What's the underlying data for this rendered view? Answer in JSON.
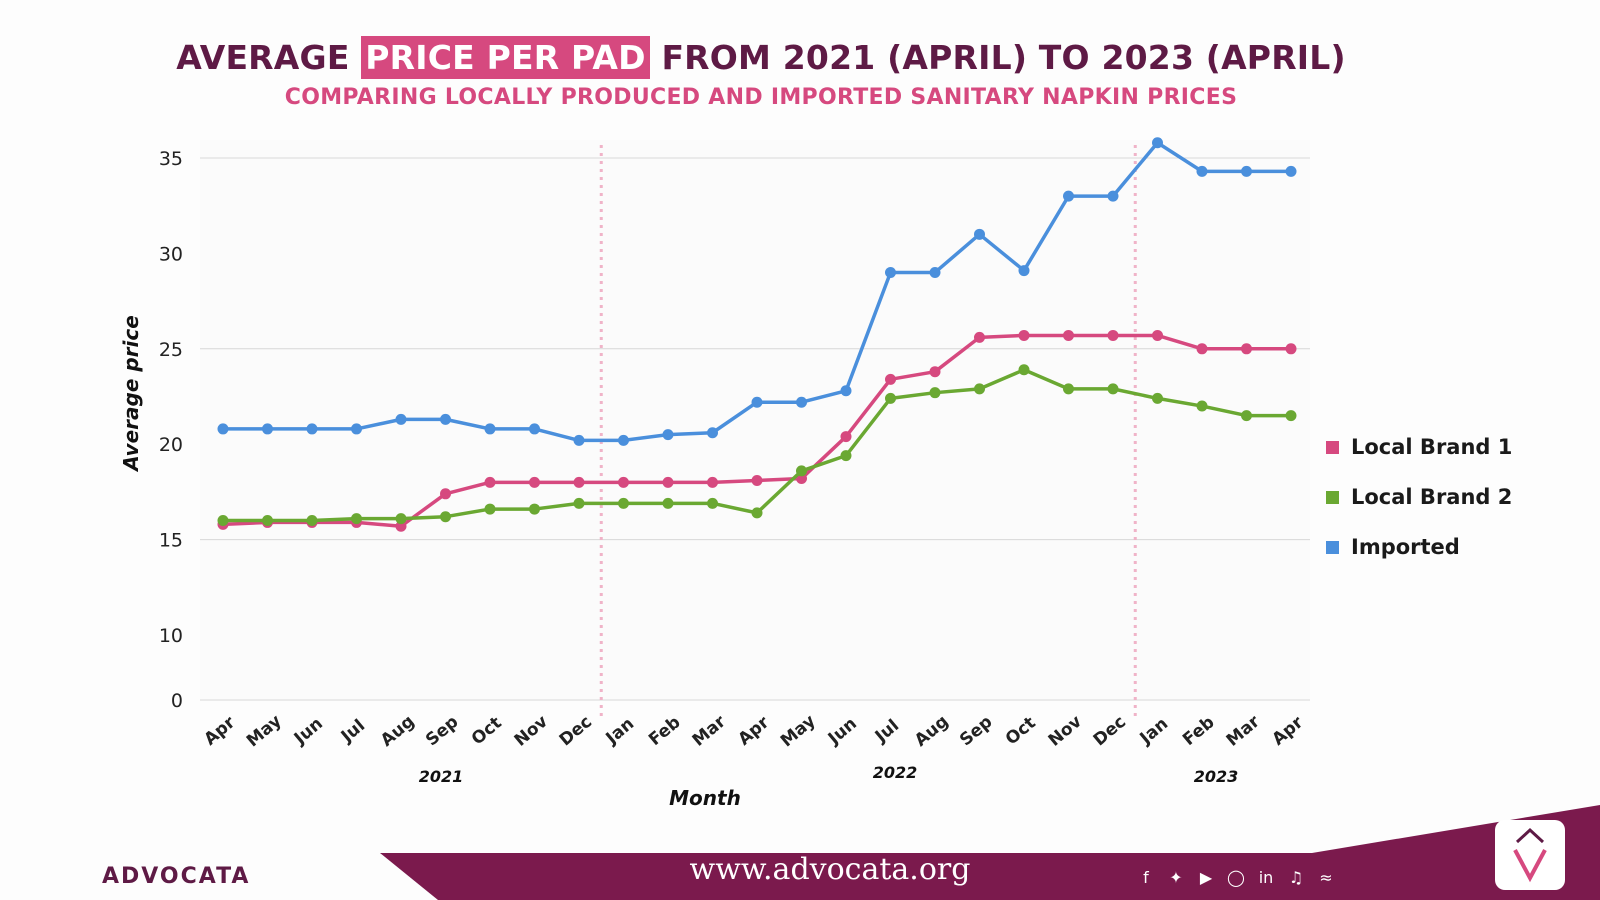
{
  "header": {
    "title_pre": "AVERAGE",
    "title_highlight": "PRICE PER PAD",
    "title_post": "FROM 2021 (APRIL) TO 2023 (APRIL)",
    "subtitle": "COMPARING LOCALLY PRODUCED AND IMPORTED SANITARY NAPKIN PRICES"
  },
  "chart_data": {
    "type": "line",
    "xlabel": "Month",
    "ylabel": "Average price",
    "x": [
      "Apr",
      "May",
      "Jun",
      "Jul",
      "Aug",
      "Sep",
      "Oct",
      "Nov",
      "Dec",
      "Jan",
      "Feb",
      "Mar",
      "Apr",
      "May",
      "Jun",
      "Jul",
      "Aug",
      "Sep",
      "Oct",
      "Nov",
      "Dec",
      "Jan",
      "Feb",
      "Mar",
      "Apr"
    ],
    "year_labels": [
      "2021",
      "2022",
      "2023"
    ],
    "y_ticks": [
      "0",
      "10",
      "15",
      "20",
      "25",
      "30",
      "35"
    ],
    "series": [
      {
        "name": "Local Brand 1",
        "color": "#d6497f",
        "values": [
          15.8,
          15.9,
          15.9,
          15.9,
          15.7,
          17.4,
          18.0,
          18.0,
          18.0,
          18.0,
          18.0,
          18.0,
          18.1,
          18.2,
          20.4,
          23.4,
          23.8,
          25.6,
          25.7,
          25.7,
          25.7,
          25.7,
          25.0,
          25.0,
          25.0
        ]
      },
      {
        "name": "Local Brand 2",
        "color": "#6aa832",
        "values": [
          16.0,
          16.0,
          16.0,
          16.1,
          16.1,
          16.2,
          16.6,
          16.6,
          16.9,
          16.9,
          16.9,
          16.9,
          16.4,
          18.6,
          19.4,
          22.4,
          22.7,
          22.9,
          23.9,
          22.9,
          22.9,
          22.4,
          22.0,
          21.5,
          21.5
        ]
      },
      {
        "name": "Imported",
        "color": "#4a8fdc",
        "values": [
          20.8,
          20.8,
          20.8,
          20.8,
          21.3,
          21.3,
          20.8,
          20.8,
          20.2,
          20.2,
          20.5,
          20.6,
          22.2,
          22.2,
          22.8,
          29.0,
          29.0,
          31.0,
          29.1,
          33.0,
          33.0,
          35.8,
          34.3,
          34.3,
          34.3
        ]
      }
    ]
  },
  "footer": {
    "url": "www.advocata.org",
    "brand": "ADVOCATA",
    "social_icons": [
      "facebook-icon",
      "twitter-icon",
      "youtube-icon",
      "instagram-icon",
      "linkedin-icon",
      "tiktok-icon",
      "spotify-icon"
    ]
  }
}
